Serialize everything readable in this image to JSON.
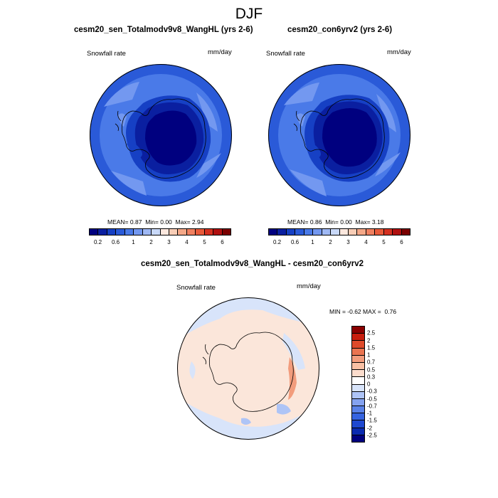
{
  "figure": {
    "title": "DJF"
  },
  "panels": [
    {
      "title": "cesm20_sen_Totalmodv9v8_WangHL (yrs 2-6)",
      "left_label": "Snowfall rate",
      "right_label": "mm/day",
      "stats": {
        "mean_label": "MEAN=",
        "mean": "0.87",
        "min_label": "Min=",
        "min": "0.00",
        "max_label": "Max=",
        "max": "2.94"
      }
    },
    {
      "title": "cesm20_con6yrv2 (yrs 2-6)",
      "left_label": "Snowfall rate",
      "right_label": "mm/day",
      "stats": {
        "mean_label": "MEAN=",
        "mean": "0.86",
        "min_label": "Min=",
        "min": "0.00",
        "max_label": "Max=",
        "max": "3.18"
      }
    },
    {
      "title": "cesm20_sen_Totalmodv9v8_WangHL - cesm20_con6yrv2",
      "left_label": "Snowfall rate",
      "right_label": "mm/day",
      "minmax": {
        "min_label": "MIN =",
        "min": "-0.62",
        "max_label": "MAX =",
        "max": "0.76"
      }
    }
  ],
  "colorbar_abs": {
    "colors": [
      "#00007f",
      "#0a1fa0",
      "#1640c4",
      "#2a5ad8",
      "#4a7ae8",
      "#7398f0",
      "#9fb8f4",
      "#c8d8f8",
      "#fce8de",
      "#f8cdb6",
      "#f4a888",
      "#f08060",
      "#e85a3a",
      "#d43020",
      "#b01010",
      "#7a0000"
    ],
    "tick_labels": [
      "0.2",
      "0.6",
      "1",
      "2",
      "3",
      "4",
      "5",
      "6"
    ]
  },
  "colorbar_diff": {
    "colors": [
      "#00007f",
      "#0a2ab0",
      "#1e48d0",
      "#3664e0",
      "#5a82e8",
      "#84a2f0",
      "#aec4f6",
      "#d8e4fa",
      "#ffffff",
      "#fbdccc",
      "#f8c0a4",
      "#f29c7c",
      "#ea7450",
      "#de4a2a",
      "#c81e0e",
      "#8a0000"
    ],
    "tick_labels": [
      "2.5",
      "2",
      "1.5",
      "1",
      "0.7",
      "0.5",
      "0.3",
      "0",
      "-0.3",
      "-0.5",
      "-0.7",
      "-1",
      "-1.5",
      "-2",
      "-2.5"
    ]
  },
  "map_colors": {
    "ocean_far": "#2a5ad8",
    "ocean_mid": "#4a7ae8",
    "ocean_light": "#7398f0",
    "ice_edge": "#1640c4",
    "interior": "#00007f",
    "interior_mid": "#0a1fa0",
    "diff_base": "#fbe6da",
    "diff_light_blue": "#d8e4fa",
    "diff_blue": "#aec4f6",
    "diff_red": "#f29c7c",
    "coast": "#000000"
  }
}
